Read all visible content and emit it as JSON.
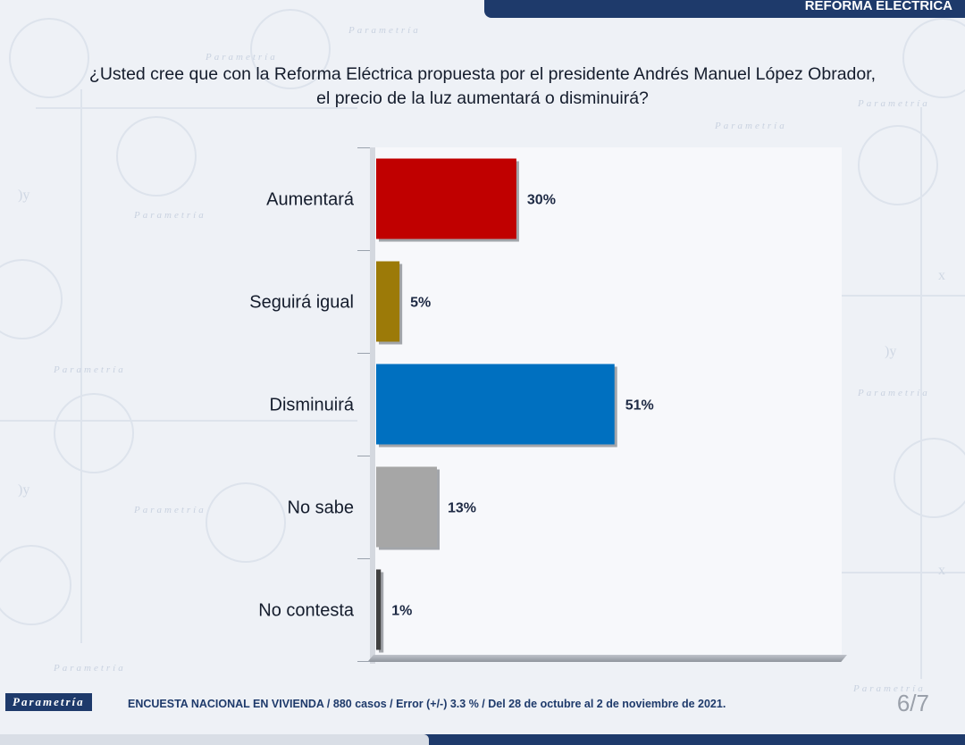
{
  "header": {
    "banner": "REFORMA ELÉCTRICA",
    "question_line1": "¿Usted cree que con la Reforma Eléctrica propuesta por el presidente Andrés Manuel López Obrador,",
    "question_line2": "el precio de la luz aumentará o disminuirá?"
  },
  "chart_data": {
    "type": "bar",
    "orientation": "horizontal",
    "categories": [
      "Aumentará",
      "Seguirá igual",
      "Disminuirá",
      "No sabe",
      "No contesta"
    ],
    "values": [
      30,
      5,
      51,
      13,
      1
    ],
    "value_labels": [
      "30%",
      "5%",
      "51%",
      "13%",
      "1%"
    ],
    "colors": [
      "#c00000",
      "#9c7a08",
      "#0070c0",
      "#a6a6a6",
      "#404040"
    ],
    "xlim": [
      0,
      100
    ],
    "grid": false,
    "legend": "none"
  },
  "footer": {
    "brand": "Parametría",
    "source": "ENCUESTA NACIONAL EN VIVIENDA / 880 casos / Error (+/-) 3.3 % / Del 28 de octubre al 2 de noviembre de 2021.",
    "page": "6/7"
  },
  "watermark": {
    "word": "Parametría"
  }
}
